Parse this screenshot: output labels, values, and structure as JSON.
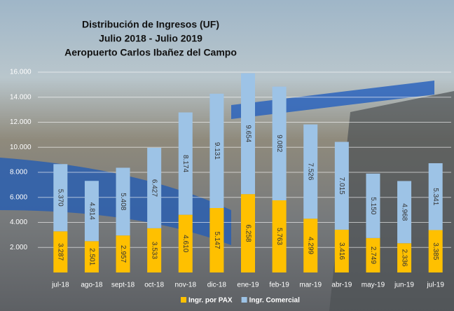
{
  "chart_data": {
    "type": "stacked_bar",
    "title": [
      "Distribución de Ingresos (UF)",
      "Julio 2018 - Julio 2019",
      "Aeropuerto Carlos Ibañez del Campo"
    ],
    "categories": [
      "jul-18",
      "ago-18",
      "sept-18",
      "oct-18",
      "nov-18",
      "dic-18",
      "ene-19",
      "feb-19",
      "mar-19",
      "abr-19",
      "may-19",
      "jun-19",
      "jul-19"
    ],
    "series": [
      {
        "name": "Ingr. por PAX",
        "color": "#ffc000",
        "values": [
          3287,
          2501,
          2957,
          3533,
          4610,
          5147,
          6258,
          5763,
          4299,
          3416,
          2749,
          2336,
          3385
        ],
        "value_labels": [
          "3.287",
          "2.501",
          "2.957",
          "3.533",
          "4.610",
          "5.147",
          "6.258",
          "5.763",
          "4.299",
          "3.416",
          "2.749",
          "2.336",
          "3.385"
        ]
      },
      {
        "name": "Ingr. Comercial",
        "color": "#9dc3e6",
        "values": [
          5370,
          4814,
          5408,
          6427,
          8174,
          9131,
          9654,
          9082,
          7526,
          7015,
          5150,
          4968,
          5341
        ],
        "value_labels": [
          "5.370",
          "4.814",
          "5.408",
          "6.427",
          "8.174",
          "9.131",
          "9.654",
          "9.082",
          "7.526",
          "7.015",
          "5.150",
          "4.968",
          "5.341"
        ]
      }
    ],
    "ylim": [
      0,
      16000
    ],
    "yticks": [
      {
        "value": 2000,
        "label": "2.000"
      },
      {
        "value": 4000,
        "label": "4.000"
      },
      {
        "value": 6000,
        "label": "6.000"
      },
      {
        "value": 8000,
        "label": "8.000"
      },
      {
        "value": 10000,
        "label": "10.000"
      },
      {
        "value": 12000,
        "label": "12.000"
      },
      {
        "value": 14000,
        "label": "14.000"
      },
      {
        "value": 16000,
        "label": "16.000"
      }
    ],
    "grid": true,
    "legend": "bottom"
  }
}
